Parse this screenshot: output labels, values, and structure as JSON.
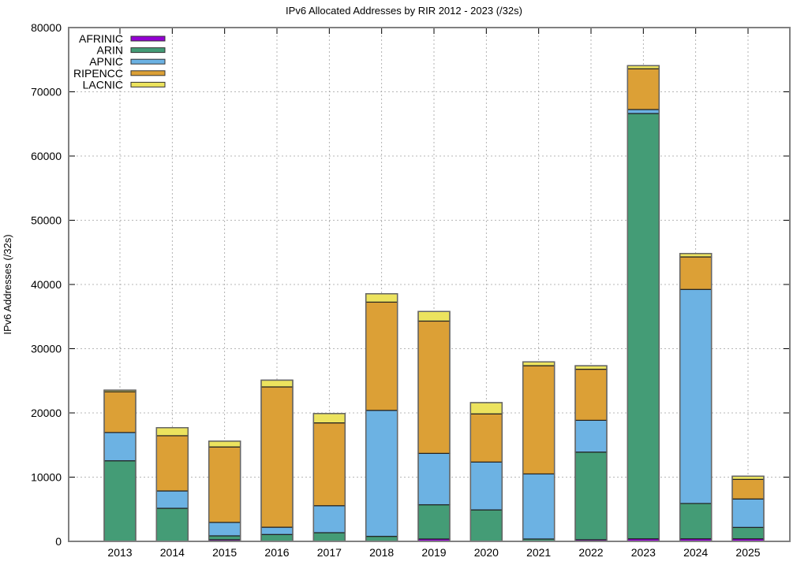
{
  "chart_data": {
    "type": "bar",
    "stacked": true,
    "title": "IPv6 Allocated Addresses by RIR 2012 - 2023 (/32s)",
    "xlabel": "",
    "ylabel": "IPv6 Addresses (/32s)",
    "ylim": [
      0,
      80000
    ],
    "yticks": [
      0,
      10000,
      20000,
      30000,
      40000,
      50000,
      60000,
      70000,
      80000
    ],
    "grid": true,
    "legend_position": "top-left",
    "categories": [
      "2013",
      "2014",
      "2015",
      "2016",
      "2017",
      "2018",
      "2019",
      "2020",
      "2021",
      "2022",
      "2023",
      "2024",
      "2025"
    ],
    "series": [
      {
        "name": "AFRINIC",
        "color": "#9400d3",
        "values": [
          50,
          50,
          250,
          50,
          50,
          50,
          370,
          50,
          50,
          250,
          400,
          400,
          400
        ]
      },
      {
        "name": "ARIN",
        "color": "#449c76",
        "values": [
          12500,
          5100,
          610,
          1020,
          1300,
          730,
          5330,
          4850,
          320,
          13650,
          66220,
          5500,
          1770
        ]
      },
      {
        "name": "APNIC",
        "color": "#6cb2e3",
        "values": [
          4400,
          2700,
          2090,
          1130,
          4200,
          19620,
          8000,
          7450,
          10130,
          4950,
          620,
          33330,
          4430
        ]
      },
      {
        "name": "RIPENCC",
        "color": "#dca036",
        "values": [
          6350,
          8600,
          11750,
          21850,
          12900,
          16850,
          20600,
          7500,
          16850,
          7950,
          6340,
          5060,
          3050
        ]
      },
      {
        "name": "LACNIC",
        "color": "#ece35e",
        "values": [
          250,
          1250,
          900,
          1050,
          1450,
          1300,
          1500,
          1750,
          600,
          550,
          490,
          530,
          500
        ]
      }
    ]
  }
}
